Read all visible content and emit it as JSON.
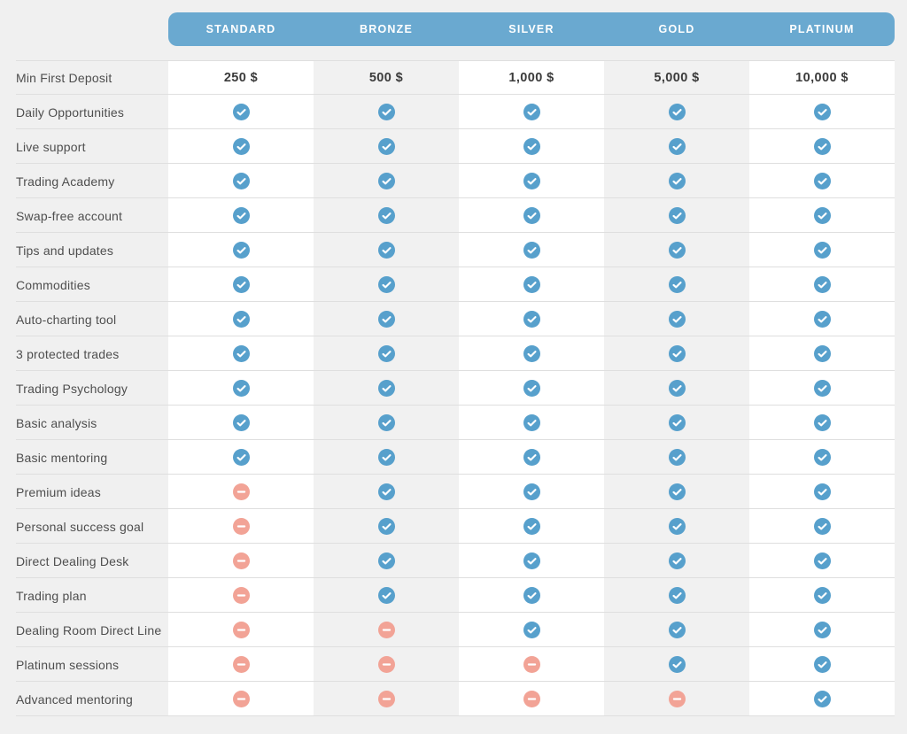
{
  "plans": [
    "STANDARD",
    "BRONZE",
    "SILVER",
    "GOLD",
    "PLATINUM"
  ],
  "colors": {
    "header_background": "#6aa9d0",
    "header_text": "#ffffff",
    "check_icon": "#57a0cc",
    "dash_icon": "#f2a396",
    "row_label_text": "#4e4e4e",
    "deposit_text": "#3b3b3b",
    "page_background": "#f0f0f0",
    "alt_column_background": "#f1f1f1"
  },
  "rows": [
    {
      "label": "Min First Deposit",
      "type": "text",
      "values": [
        "250 $",
        "500 $",
        "1,000 $",
        "5,000 $",
        "10,000 $"
      ]
    },
    {
      "label": "Daily Opportunities",
      "type": "icons",
      "values": [
        "check",
        "check",
        "check",
        "check",
        "check"
      ]
    },
    {
      "label": "Live support",
      "type": "icons",
      "values": [
        "check",
        "check",
        "check",
        "check",
        "check"
      ]
    },
    {
      "label": "Trading Academy",
      "type": "icons",
      "values": [
        "check",
        "check",
        "check",
        "check",
        "check"
      ]
    },
    {
      "label": "Swap-free account",
      "type": "icons",
      "values": [
        "check",
        "check",
        "check",
        "check",
        "check"
      ]
    },
    {
      "label": "Tips and updates",
      "type": "icons",
      "values": [
        "check",
        "check",
        "check",
        "check",
        "check"
      ]
    },
    {
      "label": "Commodities",
      "type": "icons",
      "values": [
        "check",
        "check",
        "check",
        "check",
        "check"
      ]
    },
    {
      "label": "Auto-charting tool",
      "type": "icons",
      "values": [
        "check",
        "check",
        "check",
        "check",
        "check"
      ]
    },
    {
      "label": "3 protected trades",
      "type": "icons",
      "values": [
        "check",
        "check",
        "check",
        "check",
        "check"
      ]
    },
    {
      "label": "Trading Psychology",
      "type": "icons",
      "values": [
        "check",
        "check",
        "check",
        "check",
        "check"
      ]
    },
    {
      "label": "Basic analysis",
      "type": "icons",
      "values": [
        "check",
        "check",
        "check",
        "check",
        "check"
      ]
    },
    {
      "label": "Basic mentoring",
      "type": "icons",
      "values": [
        "check",
        "check",
        "check",
        "check",
        "check"
      ]
    },
    {
      "label": "Premium ideas",
      "type": "icons",
      "values": [
        "dash",
        "check",
        "check",
        "check",
        "check"
      ]
    },
    {
      "label": "Personal success goal",
      "type": "icons",
      "values": [
        "dash",
        "check",
        "check",
        "check",
        "check"
      ]
    },
    {
      "label": "Direct Dealing Desk",
      "type": "icons",
      "values": [
        "dash",
        "check",
        "check",
        "check",
        "check"
      ]
    },
    {
      "label": "Trading plan",
      "type": "icons",
      "values": [
        "dash",
        "check",
        "check",
        "check",
        "check"
      ]
    },
    {
      "label": "Dealing Room Direct Line",
      "type": "icons",
      "values": [
        "dash",
        "dash",
        "check",
        "check",
        "check"
      ]
    },
    {
      "label": "Platinum sessions",
      "type": "icons",
      "values": [
        "dash",
        "dash",
        "dash",
        "check",
        "check"
      ]
    },
    {
      "label": "Advanced mentoring",
      "type": "icons",
      "values": [
        "dash",
        "dash",
        "dash",
        "dash",
        "check"
      ]
    }
  ]
}
